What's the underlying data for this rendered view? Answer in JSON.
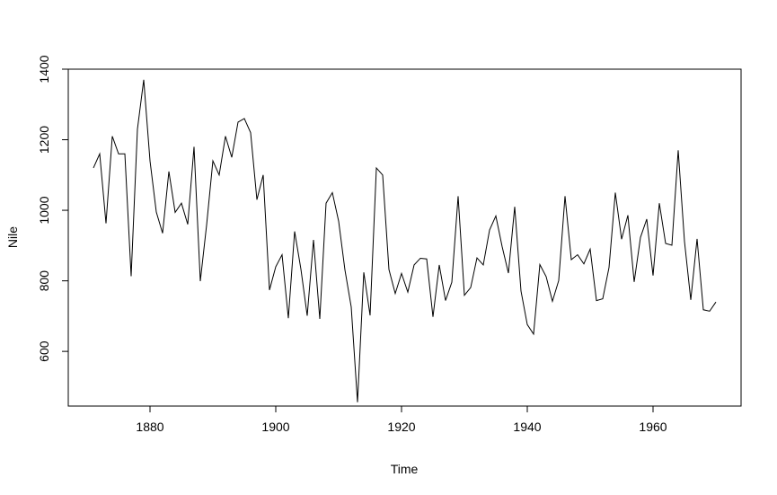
{
  "chart_data": {
    "type": "line",
    "title": "",
    "xlabel": "Time",
    "ylabel": "Nile",
    "xlim": [
      1867,
      1974
    ],
    "ylim": [
      445,
      1400
    ],
    "xticks": [
      1880,
      1900,
      1920,
      1940,
      1960
    ],
    "yticks": [
      600,
      800,
      1000,
      1200,
      1400
    ],
    "grid": false,
    "legend": "none",
    "line_color": "#000000",
    "series": [
      {
        "x": [
          1871,
          1872,
          1873,
          1874,
          1875,
          1876,
          1877,
          1878,
          1879,
          1880,
          1881,
          1882,
          1883,
          1884,
          1885,
          1886,
          1887,
          1888,
          1889,
          1890,
          1891,
          1892,
          1893,
          1894,
          1895,
          1896,
          1897,
          1898,
          1899,
          1900,
          1901,
          1902,
          1903,
          1904,
          1905,
          1906,
          1907,
          1908,
          1909,
          1910,
          1911,
          1912,
          1913,
          1914,
          1915,
          1916,
          1917,
          1918,
          1919,
          1920,
          1921,
          1922,
          1923,
          1924,
          1925,
          1926,
          1927,
          1928,
          1929,
          1930,
          1931,
          1932,
          1933,
          1934,
          1935,
          1936,
          1937,
          1938,
          1939,
          1940,
          1941,
          1942,
          1943,
          1944,
          1945,
          1946,
          1947,
          1948,
          1949,
          1950,
          1951,
          1952,
          1953,
          1954,
          1955,
          1956,
          1957,
          1958,
          1959,
          1960,
          1961,
          1962,
          1963,
          1964,
          1965,
          1966,
          1967,
          1968,
          1969,
          1970
        ],
        "values": [
          1120,
          1160,
          963,
          1210,
          1160,
          1160,
          813,
          1230,
          1370,
          1140,
          995,
          935,
          1110,
          994,
          1020,
          960,
          1180,
          799,
          958,
          1140,
          1100,
          1210,
          1150,
          1250,
          1260,
          1220,
          1030,
          1100,
          774,
          840,
          874,
          694,
          940,
          833,
          701,
          916,
          692,
          1020,
          1050,
          969,
          831,
          726,
          456,
          824,
          702,
          1120,
          1100,
          832,
          764,
          821,
          768,
          845,
          864,
          862,
          698,
          845,
          744,
          796,
          1040,
          759,
          781,
          865,
          845,
          944,
          984,
          897,
          822,
          1010,
          771,
          676,
          649,
          846,
          812,
          742,
          801,
          1040,
          860,
          874,
          848,
          890,
          744,
          749,
          838,
          1050,
          918,
          986,
          797,
          923,
          975,
          815,
          1020,
          906,
          901,
          1170,
          912,
          746,
          919,
          718,
          714,
          740
        ]
      }
    ]
  }
}
